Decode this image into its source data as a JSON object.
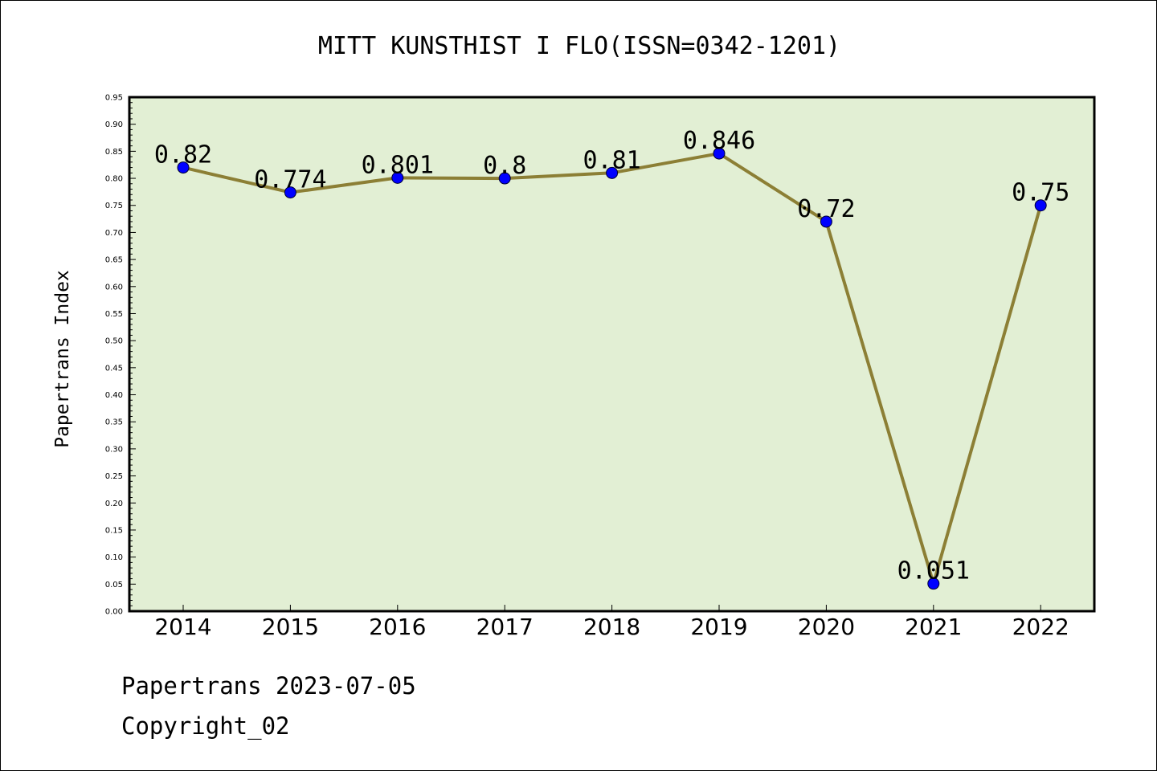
{
  "chart_data": {
    "type": "line",
    "title": "MITT KUNSTHIST I FLO(ISSN=0342-1201)",
    "xlabel": "",
    "ylabel": "Papertrans Index",
    "categories": [
      "2014",
      "2015",
      "2016",
      "2017",
      "2018",
      "2019",
      "2020",
      "2021",
      "2022"
    ],
    "series": [
      {
        "values": [
          0.82,
          0.774,
          0.801,
          0.8,
          0.81,
          0.846,
          0.72,
          0.051,
          0.75
        ],
        "labels": [
          "0.82",
          "0.774",
          "0.801",
          "0.8",
          "0.81",
          "0.846",
          "0.72",
          "0.051",
          "0.75"
        ]
      }
    ],
    "ylim": [
      0,
      0.95
    ],
    "yticks": [
      "0.00",
      "0.05",
      "0.10",
      "0.15",
      "0.20",
      "0.25",
      "0.30",
      "0.35",
      "0.40",
      "0.45",
      "0.50",
      "0.55",
      "0.60",
      "0.65",
      "0.70",
      "0.75",
      "0.80",
      "0.85",
      "0.90",
      "0.95"
    ],
    "grid": false,
    "colors": {
      "plot_background": "#e2efd4",
      "line": "#8c7f35",
      "marker": "#0000ff"
    }
  },
  "footer": {
    "date_text": "Papertrans 2023-07-05",
    "copyright_text": "Copyright_02"
  }
}
